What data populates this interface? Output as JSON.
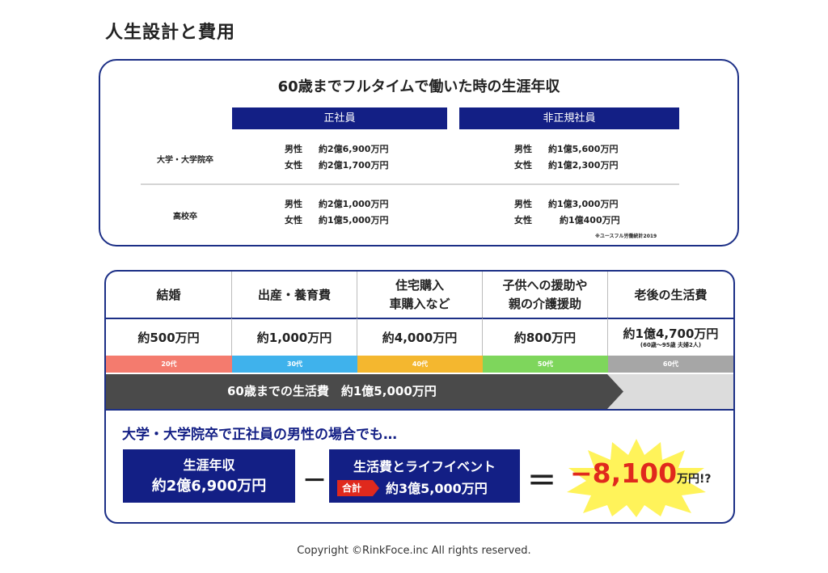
{
  "page": {
    "title": "人生設計と費用",
    "copyright": "Copyright ©RinkFoce.inc All rights reserved."
  },
  "income": {
    "title": "60歳までフルタイムで働いた時の生涯年収",
    "columns": [
      "正社員",
      "非正規社員"
    ],
    "rows": [
      {
        "label": "大学・大学院卒",
        "regular": [
          {
            "gender": "男性",
            "amount": "約2億6,900万円"
          },
          {
            "gender": "女性",
            "amount": "約2億1,700万円"
          }
        ],
        "nonregular": [
          {
            "gender": "男性",
            "amount": "約1億5,600万円"
          },
          {
            "gender": "女性",
            "amount": "約1億2,300万円"
          }
        ]
      },
      {
        "label": "高校卒",
        "regular": [
          {
            "gender": "男性",
            "amount": "約2億1,000万円"
          },
          {
            "gender": "女性",
            "amount": "約1億5,000万円"
          }
        ],
        "nonregular": [
          {
            "gender": "男性",
            "amount": "約1億3,000万円"
          },
          {
            "gender": "女性",
            "amount": "約1億400万円"
          }
        ]
      }
    ],
    "source": "※ユースフル労働統計2019"
  },
  "life_events": [
    {
      "name": "結婚",
      "amount": "約500万円",
      "note": "",
      "age": "20代",
      "color": "#f47b6e"
    },
    {
      "name": "出産・養育費",
      "amount": "約1,000万円",
      "note": "",
      "age": "30代",
      "color": "#3fb2ec"
    },
    {
      "name": "住宅購入\n車購入など",
      "amount": "約4,000万円",
      "note": "",
      "age": "40代",
      "color": "#f4b72f"
    },
    {
      "name": "子供への援助や\n親の介護援助",
      "amount": "約800万円",
      "note": "",
      "age": "50代",
      "color": "#7ed65c"
    },
    {
      "name": "老後の生活費",
      "amount": "約1億4,700万円",
      "note": "(60歳〜95歳 夫婦2人)",
      "age": "60代",
      "color": "#a6a6a6"
    }
  ],
  "total": {
    "text": "60歳までの生活費　約1億5,000万円"
  },
  "case": {
    "title": "大学・大学院卒で正社員の男性の場合でも…",
    "income_label": "生涯年収",
    "income_amount": "約2億6,900万円",
    "minus": "－",
    "life_label": "生活費とライフイベント",
    "total_tag": "合計",
    "life_amount": "約3億5,000万円",
    "equals": "＝",
    "result_value": "−8,100",
    "result_unit": "万円!?"
  }
}
